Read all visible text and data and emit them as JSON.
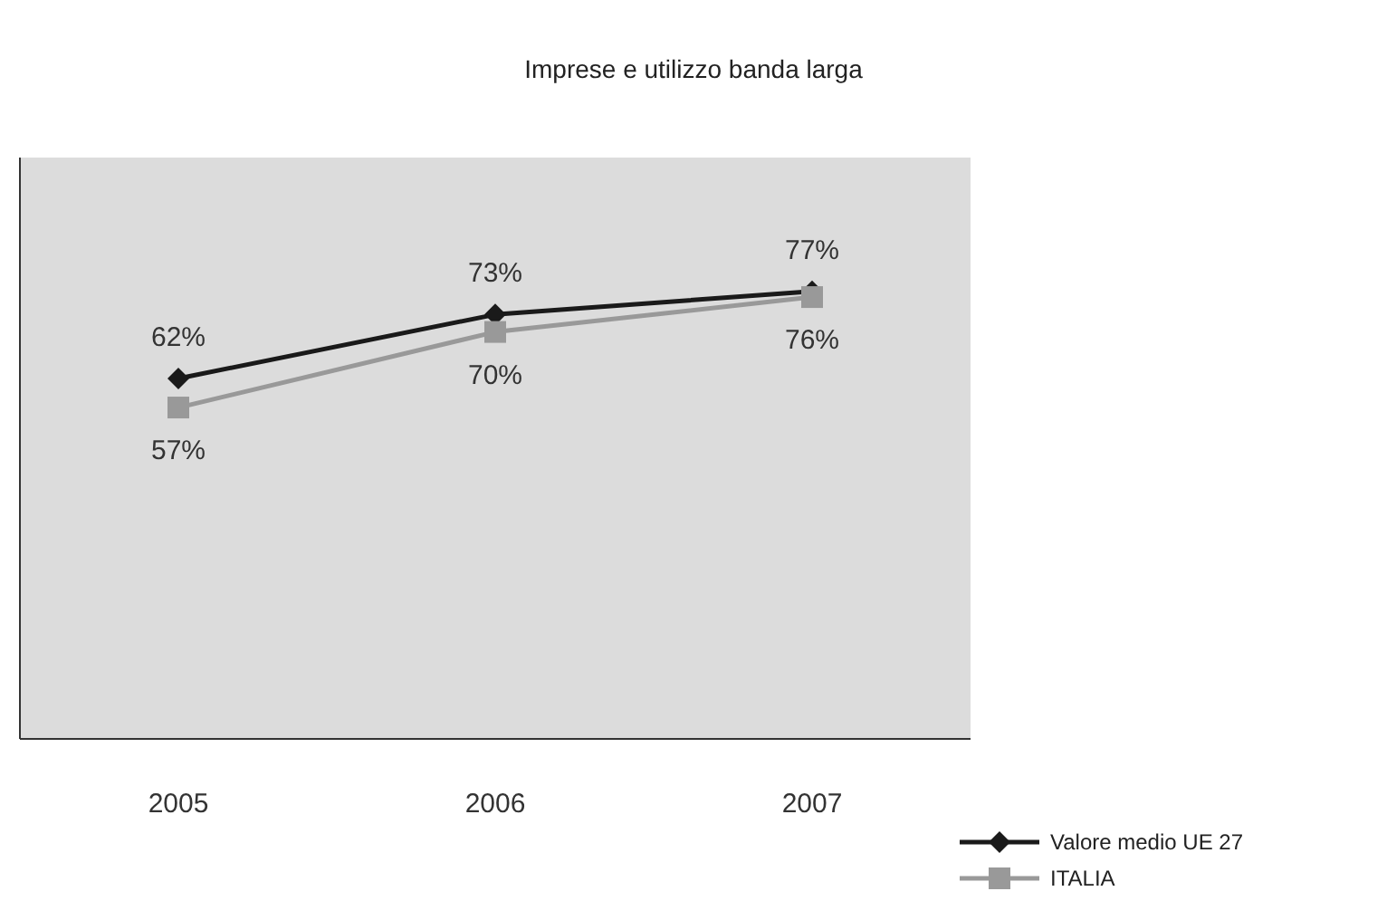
{
  "chart_data": {
    "type": "line",
    "title": "Imprese e utilizzo banda larga",
    "categories": [
      "2005",
      "2006",
      "2007"
    ],
    "series": [
      {
        "name": "Valore medio UE 27",
        "color": "#1a1a1a",
        "values": [
          62,
          73,
          77
        ],
        "marker": "diamond",
        "value_labels": [
          "62%",
          "73%",
          "77%"
        ]
      },
      {
        "name": "ITALIA",
        "color": "#999999",
        "values": [
          57,
          70,
          76
        ],
        "marker": "square",
        "value_labels": [
          "57%",
          "70%",
          "76%"
        ]
      }
    ],
    "ylim": [
      0,
      100
    ],
    "tick_labels": "x",
    "grid": false,
    "legend": "bottom right",
    "line_style": "solid"
  }
}
